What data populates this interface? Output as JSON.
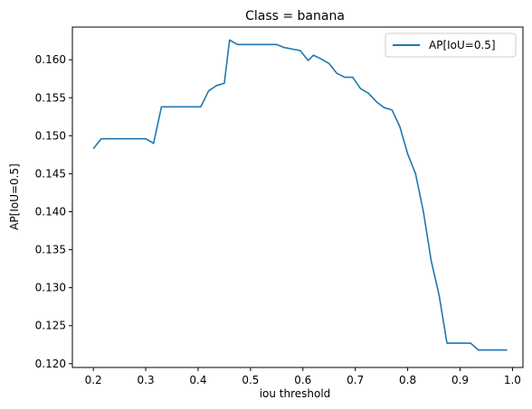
{
  "chart_data": {
    "type": "line",
    "title": "Class = banana",
    "xlabel": "iou threshold",
    "ylabel": "AP[IoU=0.5]",
    "xlim": [
      0.16,
      1.02
    ],
    "ylim": [
      0.1195,
      0.1643
    ],
    "xticks": [
      "0.2",
      "0.3",
      "0.4",
      "0.5",
      "0.6",
      "0.7",
      "0.8",
      "0.9",
      "1.0"
    ],
    "xtick_values": [
      0.2,
      0.3,
      0.4,
      0.5,
      0.6,
      0.7,
      0.8,
      0.9,
      1.0
    ],
    "yticks": [
      "0.120",
      "0.125",
      "0.130",
      "0.135",
      "0.140",
      "0.145",
      "0.150",
      "0.155",
      "0.160"
    ],
    "ytick_values": [
      0.12,
      0.125,
      0.13,
      0.135,
      0.14,
      0.145,
      0.15,
      0.155,
      0.16
    ],
    "legend_position": "top-right",
    "grid": false,
    "series": [
      {
        "name": "AP[IoU=0.5]",
        "color": "#1f77b4",
        "x": [
          0.2,
          0.215,
          0.23,
          0.245,
          0.26,
          0.275,
          0.29,
          0.3,
          0.315,
          0.33,
          0.345,
          0.36,
          0.375,
          0.39,
          0.405,
          0.42,
          0.435,
          0.45,
          0.46,
          0.475,
          0.49,
          0.505,
          0.52,
          0.535,
          0.55,
          0.565,
          0.58,
          0.595,
          0.61,
          0.62,
          0.635,
          0.65,
          0.665,
          0.68,
          0.695,
          0.71,
          0.725,
          0.74,
          0.755,
          0.77,
          0.785,
          0.8,
          0.815,
          0.83,
          0.845,
          0.86,
          0.875,
          0.89,
          0.905,
          0.92,
          0.935,
          0.95,
          0.965,
          0.99
        ],
        "y": [
          0.1483,
          0.1496,
          0.1496,
          0.1496,
          0.1496,
          0.1496,
          0.1496,
          0.1496,
          0.149,
          0.1538,
          0.1538,
          0.1538,
          0.1538,
          0.1538,
          0.1538,
          0.1559,
          0.1566,
          0.1569,
          0.1626,
          0.162,
          0.162,
          0.162,
          0.162,
          0.162,
          0.162,
          0.1616,
          0.1614,
          0.1612,
          0.1599,
          0.1606,
          0.1601,
          0.1595,
          0.1582,
          0.1577,
          0.1577,
          0.1562,
          0.1556,
          0.1545,
          0.1537,
          0.1534,
          0.1512,
          0.1476,
          0.145,
          0.14,
          0.1335,
          0.129,
          0.1227,
          0.1227,
          0.1227,
          0.1227,
          0.1218,
          0.1218,
          0.1218,
          0.1218
        ]
      }
    ]
  }
}
